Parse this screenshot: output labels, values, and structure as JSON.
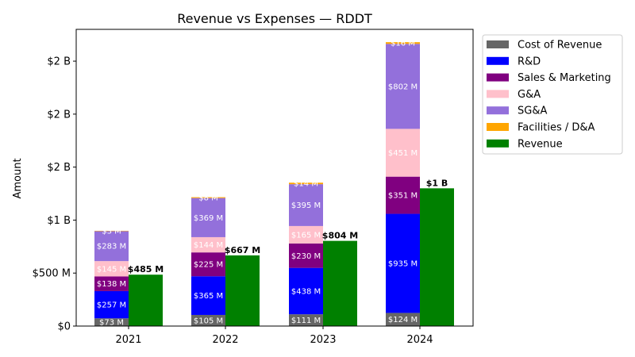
{
  "chart_data": {
    "type": "bar",
    "title": "Revenue vs Expenses — RDDT",
    "xlabel": "",
    "ylabel": "Amount",
    "ylim": [
      0,
      2.8
    ],
    "unit": "billions USD",
    "yticks": [
      {
        "value": 0,
        "label": "$0"
      },
      {
        "value": 0.5,
        "label": "$500 M"
      },
      {
        "value": 1.0,
        "label": "$1 B"
      },
      {
        "value": 1.5,
        "label": "$2 B"
      },
      {
        "value": 2.0,
        "label": "$2 B"
      },
      {
        "value": 2.5,
        "label": "$2 B"
      }
    ],
    "categories": [
      "2021",
      "2022",
      "2023",
      "2024"
    ],
    "stacked_series": [
      {
        "name": "Cost of Revenue",
        "color": "#666666",
        "values": [
          0.073,
          0.105,
          0.111,
          0.124
        ],
        "labels": [
          "$73 M",
          "$105 M",
          "$111 M",
          "$124 M"
        ]
      },
      {
        "name": "R&D",
        "color": "#0000ff",
        "values": [
          0.257,
          0.365,
          0.438,
          0.935
        ],
        "labels": [
          "$257 M",
          "$365 M",
          "$438 M",
          "$935 M"
        ]
      },
      {
        "name": "Sales & Marketing",
        "color": "#800080",
        "values": [
          0.138,
          0.225,
          0.23,
          0.351
        ],
        "labels": [
          "$138 M",
          "$225 M",
          "$230 M",
          "$351 M"
        ]
      },
      {
        "name": "G&A",
        "color": "#ffc0cb",
        "values": [
          0.145,
          0.144,
          0.165,
          0.451
        ],
        "labels": [
          "$145 M",
          "$144 M",
          "$165 M",
          "$451 M"
        ]
      },
      {
        "name": "SG&A",
        "color": "#9370db",
        "values": [
          0.283,
          0.369,
          0.395,
          0.802
        ],
        "labels": [
          "$283 M",
          "$369 M",
          "$395 M",
          "$802 M"
        ]
      },
      {
        "name": "Facilities / D&A",
        "color": "#ffa500",
        "values": [
          0.003,
          0.008,
          0.014,
          0.016
        ],
        "labels": [
          "$3 M",
          "$8 M",
          "$14 M",
          "$16 M"
        ]
      }
    ],
    "revenue_series": {
      "name": "Revenue",
      "color": "#008000",
      "values": [
        0.485,
        0.667,
        0.804,
        1.3
      ],
      "labels": [
        "$485 M",
        "$667 M",
        "$804 M",
        "$1 B"
      ]
    },
    "legend": [
      "Cost of Revenue",
      "R&D",
      "Sales & Marketing",
      "G&A",
      "SG&A",
      "Facilities / D&A",
      "Revenue"
    ],
    "legend_position": "outside-right-top",
    "grid": false
  }
}
